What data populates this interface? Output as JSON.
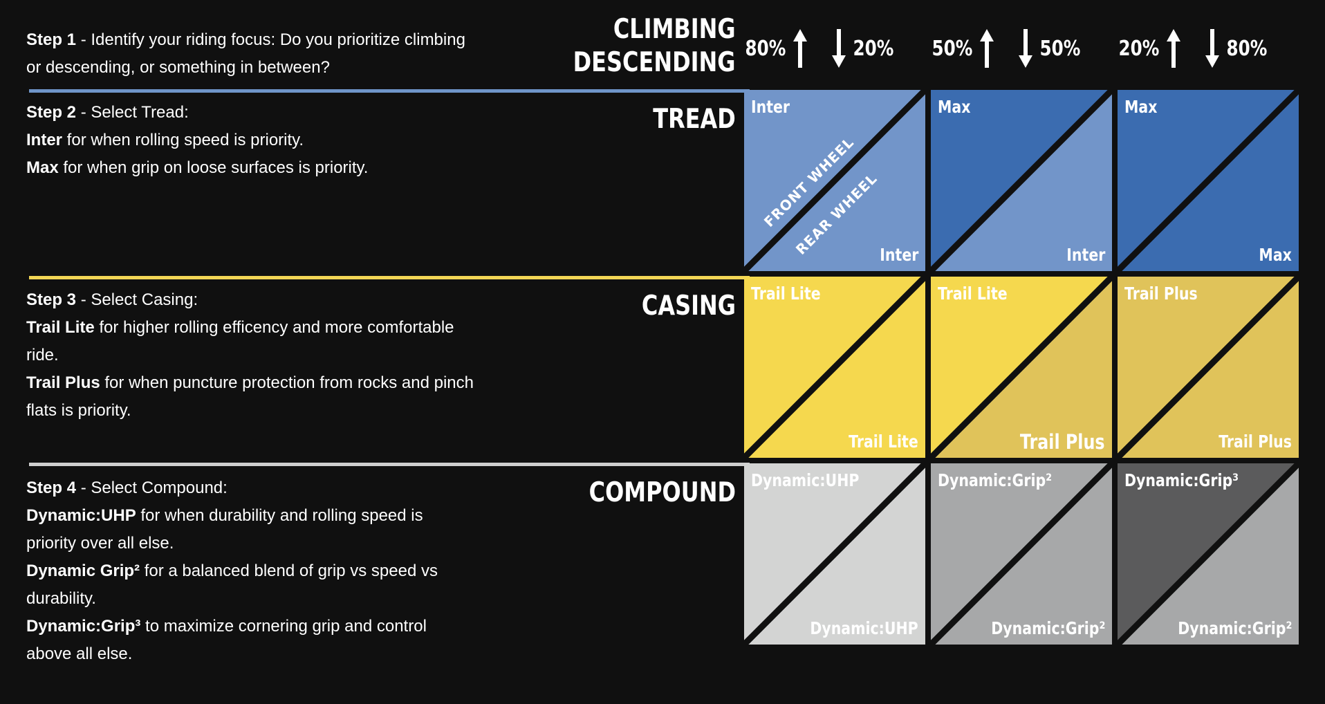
{
  "header": {
    "climbing_label": "CLIMBING",
    "descending_label": "DESCENDING"
  },
  "columns": [
    {
      "climb_pct": "80%",
      "descend_pct": "20%"
    },
    {
      "climb_pct": "50%",
      "descend_pct": "50%"
    },
    {
      "climb_pct": "20%",
      "descend_pct": "80%"
    }
  ],
  "steps": [
    {
      "title": "Step 1",
      "text": " - Identify your riding focus: Do you prioritize climbing or descending, or something in between?"
    },
    {
      "title": "Step 2",
      "text": " - Select Tread:",
      "lines": [
        {
          "bold": "Inter",
          "text": " for when rolling speed is priority."
        },
        {
          "bold": "Max",
          "text": " for when grip on loose surfaces is priority."
        }
      ]
    },
    {
      "title": "Step 3",
      "text": " - Select Casing:",
      "lines": [
        {
          "bold": "Trail Lite",
          "text": " for higher rolling efficency and more comfortable ride."
        },
        {
          "bold": "Trail Plus",
          "text": " for when puncture protection from rocks and pinch flats is priority."
        }
      ]
    },
    {
      "title": "Step 4",
      "text": " - Select Compound:",
      "lines": [
        {
          "bold": "Dynamic:UHP",
          "text": " for when durability and rolling speed is priority over all else."
        },
        {
          "bold": "Dynamic Grip²",
          "text": " for a balanced blend of grip vs speed vs durability."
        },
        {
          "bold": "Dynamic:Grip³",
          "text": " to maximize cornering grip and control above all else."
        }
      ]
    }
  ],
  "rows": [
    {
      "name": "TREAD",
      "rule_color": "#6f95c9",
      "cells": [
        {
          "front": "Inter",
          "rear": "Inter",
          "front_color": "#7295c9",
          "rear_color": "#7295c9"
        },
        {
          "front": "Max",
          "rear": "Inter",
          "front_color": "#3b6cb0",
          "rear_color": "#7295c9"
        },
        {
          "front": "Max",
          "rear": "Max",
          "front_color": "#3b6cb0",
          "rear_color": "#3b6cb0"
        }
      ]
    },
    {
      "name": "CASING",
      "rule_color": "#f2d655",
      "cells": [
        {
          "front": "Trail Lite",
          "rear": "Trail Lite",
          "front_color": "#f5d84e",
          "rear_color": "#f5d84e"
        },
        {
          "front": "Trail Lite",
          "rear": "Trail Plus",
          "front_color": "#f5d84e",
          "rear_color": "#e0c35a"
        },
        {
          "front": "Trail Plus",
          "rear": "Trail Plus",
          "front_color": "#e0c35a",
          "rear_color": "#e0c35a"
        }
      ]
    },
    {
      "name": "COMPOUND",
      "rule_color": "#cfcfcf",
      "cells": [
        {
          "front": "Dynamic:UHP",
          "rear": "Dynamic:UHP",
          "front_color": "#d3d4d3",
          "rear_color": "#d3d4d3"
        },
        {
          "front": "Dynamic:Grip²",
          "rear": "Dynamic:Grip²",
          "front_color": "#a7a8a9",
          "rear_color": "#a7a8a9"
        },
        {
          "front": "Dynamic:Grip³",
          "rear": "Dynamic:Grip²",
          "front_color": "#5b5b5c",
          "rear_color": "#a7a8a9"
        }
      ]
    }
  ],
  "wheel_labels": {
    "front": "FRONT WHEEL",
    "rear": "REAR WHEEL"
  },
  "arrow_icons": [
    "arrow-up-icon",
    "arrow-down-icon"
  ]
}
